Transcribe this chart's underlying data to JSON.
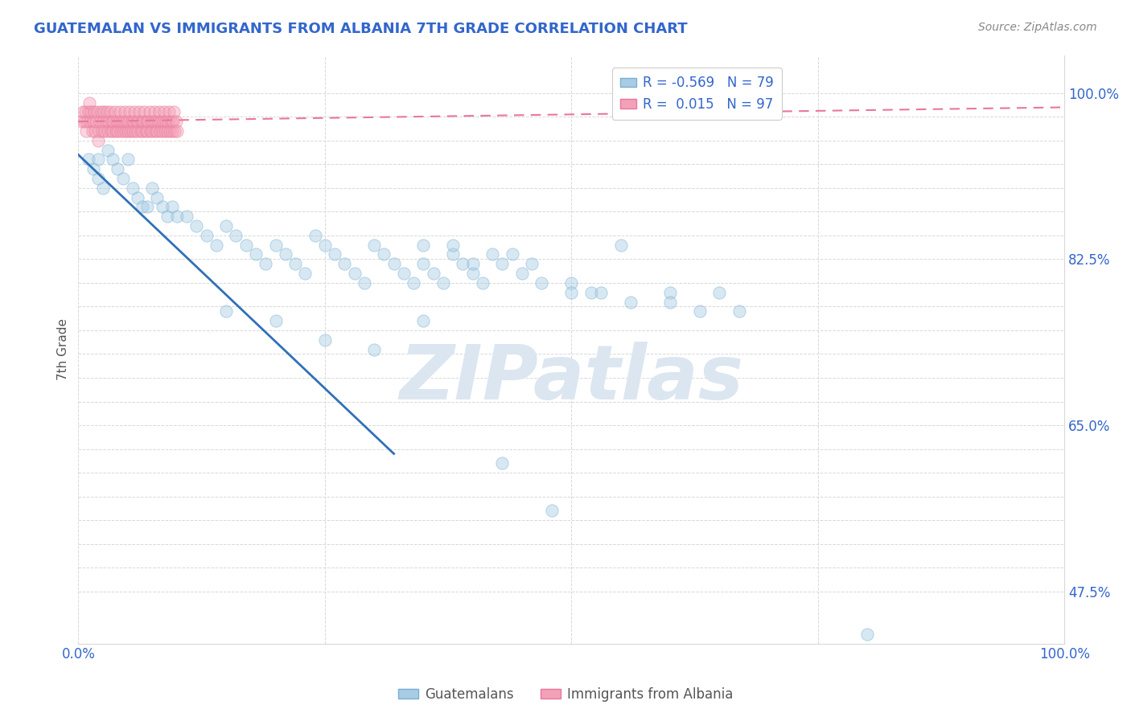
{
  "title": "GUATEMALAN VS IMMIGRANTS FROM ALBANIA 7TH GRADE CORRELATION CHART",
  "source_text": "Source: ZipAtlas.com",
  "ylabel": "7th Grade",
  "watermark": "ZIPatlas",
  "xlim": [
    0.0,
    1.0
  ],
  "ylim": [
    0.42,
    1.04
  ],
  "ytick_positions": [
    0.475,
    0.5,
    0.525,
    0.55,
    0.575,
    0.6,
    0.625,
    0.65,
    0.675,
    0.7,
    0.725,
    0.75,
    0.775,
    0.8,
    0.825,
    0.85,
    0.875,
    0.9,
    0.925,
    0.95,
    0.975,
    1.0
  ],
  "ytick_labels_show": [
    0.475,
    0.65,
    0.825,
    1.0
  ],
  "blue_R": "-0.569",
  "blue_N": "79",
  "pink_R": "0.015",
  "pink_N": "97",
  "blue_scatter_x": [
    0.01,
    0.015,
    0.02,
    0.02,
    0.025,
    0.03,
    0.035,
    0.04,
    0.045,
    0.05,
    0.055,
    0.06,
    0.065,
    0.07,
    0.075,
    0.08,
    0.085,
    0.09,
    0.095,
    0.1,
    0.11,
    0.12,
    0.13,
    0.14,
    0.15,
    0.16,
    0.17,
    0.18,
    0.19,
    0.2,
    0.21,
    0.22,
    0.23,
    0.24,
    0.25,
    0.26,
    0.27,
    0.28,
    0.29,
    0.3,
    0.31,
    0.32,
    0.33,
    0.34,
    0.35,
    0.36,
    0.37,
    0.38,
    0.39,
    0.4,
    0.41,
    0.43,
    0.45,
    0.47,
    0.5,
    0.52,
    0.55,
    0.6,
    0.65,
    0.67,
    0.38,
    0.42,
    0.46,
    0.5,
    0.53,
    0.56,
    0.6,
    0.63,
    0.35,
    0.4,
    0.44,
    0.8,
    0.15,
    0.2,
    0.25,
    0.3,
    0.35,
    0.43,
    0.48
  ],
  "blue_scatter_y": [
    0.93,
    0.92,
    0.91,
    0.93,
    0.9,
    0.94,
    0.93,
    0.92,
    0.91,
    0.93,
    0.9,
    0.89,
    0.88,
    0.88,
    0.9,
    0.89,
    0.88,
    0.87,
    0.88,
    0.87,
    0.87,
    0.86,
    0.85,
    0.84,
    0.86,
    0.85,
    0.84,
    0.83,
    0.82,
    0.84,
    0.83,
    0.82,
    0.81,
    0.85,
    0.84,
    0.83,
    0.82,
    0.81,
    0.8,
    0.84,
    0.83,
    0.82,
    0.81,
    0.8,
    0.82,
    0.81,
    0.8,
    0.83,
    0.82,
    0.81,
    0.8,
    0.82,
    0.81,
    0.8,
    0.8,
    0.79,
    0.84,
    0.79,
    0.79,
    0.77,
    0.84,
    0.83,
    0.82,
    0.79,
    0.79,
    0.78,
    0.78,
    0.77,
    0.84,
    0.82,
    0.83,
    0.43,
    0.77,
    0.76,
    0.74,
    0.73,
    0.76,
    0.61,
    0.56
  ],
  "pink_scatter_x": [
    0.003,
    0.005,
    0.006,
    0.007,
    0.008,
    0.009,
    0.01,
    0.011,
    0.012,
    0.013,
    0.014,
    0.015,
    0.016,
    0.017,
    0.018,
    0.019,
    0.02,
    0.021,
    0.022,
    0.023,
    0.024,
    0.025,
    0.026,
    0.027,
    0.028,
    0.029,
    0.03,
    0.031,
    0.032,
    0.033,
    0.034,
    0.035,
    0.036,
    0.037,
    0.038,
    0.039,
    0.04,
    0.041,
    0.042,
    0.043,
    0.044,
    0.045,
    0.046,
    0.047,
    0.048,
    0.049,
    0.05,
    0.051,
    0.052,
    0.053,
    0.054,
    0.055,
    0.056,
    0.057,
    0.058,
    0.059,
    0.06,
    0.061,
    0.062,
    0.063,
    0.064,
    0.065,
    0.066,
    0.067,
    0.068,
    0.069,
    0.07,
    0.071,
    0.072,
    0.073,
    0.074,
    0.075,
    0.076,
    0.077,
    0.078,
    0.079,
    0.08,
    0.081,
    0.082,
    0.083,
    0.084,
    0.085,
    0.086,
    0.087,
    0.088,
    0.089,
    0.09,
    0.091,
    0.092,
    0.093,
    0.094,
    0.095,
    0.096,
    0.097,
    0.098,
    0.099,
    0.1
  ],
  "pink_scatter_y": [
    0.97,
    0.98,
    0.97,
    0.98,
    0.96,
    0.97,
    0.98,
    0.99,
    0.97,
    0.98,
    0.96,
    0.97,
    0.98,
    0.96,
    0.97,
    0.98,
    0.95,
    0.96,
    0.97,
    0.98,
    0.96,
    0.97,
    0.98,
    0.96,
    0.97,
    0.98,
    0.96,
    0.97,
    0.98,
    0.96,
    0.97,
    0.96,
    0.97,
    0.98,
    0.96,
    0.97,
    0.96,
    0.97,
    0.98,
    0.96,
    0.97,
    0.96,
    0.97,
    0.98,
    0.96,
    0.97,
    0.96,
    0.97,
    0.98,
    0.96,
    0.97,
    0.96,
    0.97,
    0.98,
    0.96,
    0.97,
    0.96,
    0.97,
    0.98,
    0.96,
    0.97,
    0.96,
    0.97,
    0.98,
    0.96,
    0.97,
    0.96,
    0.97,
    0.98,
    0.96,
    0.97,
    0.96,
    0.97,
    0.98,
    0.96,
    0.97,
    0.96,
    0.97,
    0.98,
    0.96,
    0.97,
    0.96,
    0.97,
    0.98,
    0.96,
    0.97,
    0.96,
    0.97,
    0.98,
    0.96,
    0.97,
    0.96,
    0.97,
    0.98,
    0.96,
    0.97,
    0.96
  ],
  "blue_line_x": [
    0.0,
    0.32
  ],
  "blue_line_y": [
    0.935,
    0.62
  ],
  "pink_line_x": [
    0.0,
    1.0
  ],
  "pink_line_y": [
    0.97,
    0.985
  ],
  "blue_color": "#a8cce4",
  "pink_color": "#f4a0b8",
  "blue_scatter_edge": "#7aafd4",
  "pink_scatter_edge": "#e8789a",
  "blue_line_color": "#3070b8",
  "pink_line_color": "#e87898",
  "grid_color": "#d8d8d8",
  "watermark_color": "#dce6f0",
  "background_color": "#ffffff",
  "title_color": "#3366cc",
  "source_color": "#888888",
  "ylabel_color": "#555555",
  "scatter_size": 120,
  "scatter_alpha": 0.45,
  "figsize": [
    14.06,
    8.92
  ],
  "dpi": 100
}
